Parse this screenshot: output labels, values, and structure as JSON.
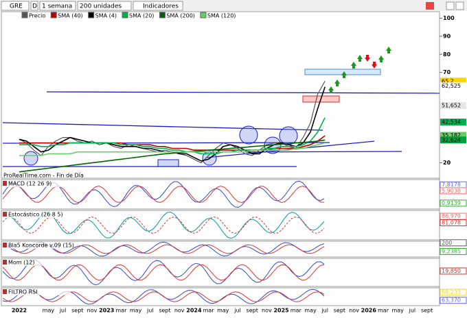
{
  "toolbar": {
    "symbol": "GRE",
    "mode": "D",
    "period": "1 semana",
    "units": "200 unidades",
    "indicators": "Indicadores"
  },
  "chart_data": {
    "type": "line",
    "categories": [
      "2022",
      null,
      null,
      null,
      "may",
      null,
      "jul",
      null,
      "sept",
      null,
      "nov",
      null,
      "2023",
      null,
      "mar",
      null,
      "may",
      null,
      "jul",
      null,
      "sept",
      null,
      "nov",
      null,
      "2024",
      null,
      "mar",
      null,
      "may",
      null,
      "jul",
      null,
      "sept",
      null,
      "nov",
      null,
      "2025",
      null,
      "mar",
      null,
      "may",
      null,
      "jul",
      null,
      "sept",
      null,
      "nov",
      null,
      "2026",
      null,
      "mar",
      null,
      "may",
      null,
      "jul",
      null,
      "sept"
    ],
    "series": [
      {
        "name": "Precio",
        "color": "#555555",
        "values": [
          33,
          31,
          27,
          24,
          29,
          32,
          34,
          34,
          32,
          31,
          32,
          30,
          31,
          29,
          28,
          30,
          29,
          28,
          27,
          26,
          27,
          26,
          25,
          24,
          22,
          20,
          24,
          28,
          31,
          30,
          28,
          25,
          24,
          27,
          30,
          31,
          31,
          29,
          28,
          34,
          42,
          58,
          65.2,
          null,
          null,
          null,
          null,
          null,
          null,
          null,
          null,
          null,
          null,
          null,
          null,
          null,
          null
        ]
      },
      {
        "name": "SMA (40)",
        "color": "#c00000",
        "values": [
          31,
          31,
          31,
          31,
          31,
          31,
          31,
          31,
          31,
          31,
          31,
          31,
          31,
          31,
          31,
          30,
          30,
          30,
          30,
          29,
          29,
          28,
          28,
          28,
          27,
          27,
          27,
          27,
          27,
          27,
          27,
          27,
          27,
          27,
          27,
          28,
          28,
          28,
          28,
          29,
          30,
          32,
          35,
          null,
          null,
          null,
          null,
          null,
          null,
          null,
          null,
          null,
          null,
          null,
          null,
          null,
          null
        ]
      },
      {
        "name": "SMA (4)",
        "color": "#000000",
        "values": [
          33,
          32,
          29,
          26,
          27,
          30,
          32,
          34,
          33,
          32,
          31,
          31,
          31,
          30,
          29,
          29,
          29,
          28,
          28,
          27,
          26,
          26,
          25,
          25,
          23,
          21,
          22,
          25,
          29,
          30,
          29,
          27,
          25,
          25,
          28,
          30,
          31,
          30,
          29,
          31,
          37,
          50,
          62,
          null,
          null,
          null,
          null,
          null,
          null,
          null,
          null,
          null,
          null,
          null,
          null,
          null,
          null
        ]
      },
      {
        "name": "SMA (20)",
        "color": "#00b050",
        "values": [
          30,
          30,
          30,
          29,
          29,
          30,
          30,
          31,
          31,
          31,
          31,
          31,
          31,
          31,
          30,
          30,
          30,
          29,
          29,
          28,
          28,
          27,
          27,
          26,
          26,
          25,
          25,
          25,
          26,
          26,
          27,
          27,
          27,
          27,
          28,
          28,
          29,
          29,
          29,
          30,
          32,
          37,
          45,
          null,
          null,
          null,
          null,
          null,
          null,
          null,
          null,
          null,
          null,
          null,
          null,
          null,
          null
        ]
      },
      {
        "name": "SMA (200)",
        "color": "#006400",
        "values": [
          15,
          15.5,
          16,
          16.5,
          17,
          17.5,
          18,
          18.5,
          19,
          19.5,
          20,
          20.5,
          21,
          21.5,
          22,
          22.5,
          23,
          23.5,
          24,
          24.5,
          25,
          25.3,
          25.6,
          26,
          26.3,
          26.6,
          27,
          27.3,
          27.6,
          28,
          28.3,
          28.6,
          29,
          29.3,
          29.6,
          30,
          30.3,
          30.6,
          31,
          31.3,
          31.6,
          32,
          32.6,
          null,
          null,
          null,
          null,
          null,
          null,
          null,
          null,
          null,
          null,
          null,
          null,
          null,
          null
        ]
      },
      {
        "name": "SMA (120)",
        "color": "#66cc66",
        "values": [
          24,
          24,
          24,
          24,
          25,
          25,
          25,
          25,
          26,
          26,
          26,
          26,
          26,
          26,
          26,
          26,
          26,
          26,
          26,
          26,
          26,
          26,
          26,
          26,
          26,
          26,
          26,
          26,
          26,
          26,
          26,
          26,
          27,
          27,
          27,
          27,
          27,
          27,
          28,
          28,
          29,
          30,
          31,
          null,
          null,
          null,
          null,
          null,
          null,
          null,
          null,
          null,
          null,
          null,
          null,
          null,
          null
        ]
      }
    ],
    "ylim": [
      11.5,
      103.6
    ],
    "yticks": [
      20,
      70,
      80,
      90,
      100
    ],
    "price_tags": [
      {
        "value": 65.2,
        "label": "65,2",
        "color": "#ffd700"
      },
      {
        "value": 62.525,
        "label": "62,525",
        "color": "#ffffff"
      },
      {
        "value": 51.652,
        "label": "51,652",
        "color": "#e6e6e6"
      },
      {
        "value": 42.534,
        "label": "42,534",
        "color": "#00b050"
      },
      {
        "value": 35.182,
        "label": "35,182",
        "color": "#66cc66"
      },
      {
        "value": 32.624,
        "label": "32,624",
        "color": "#00a040"
      }
    ],
    "source": "ProRealTime.com - Fin de Día"
  },
  "panels": [
    {
      "title": "MACD (12 26 9)",
      "tags": [
        "7,8178",
        "5,9038",
        "0,9139"
      ]
    },
    {
      "title": "Estocástico (26 8 5)",
      "tags": [
        "86,979",
        "81,078"
      ]
    },
    {
      "title": "Bla5 Koncorde v.09 (15)",
      "tags": [
        "200",
        "9,2385"
      ]
    },
    {
      "title": "Mom (12)",
      "tags": [
        "19,850"
      ]
    },
    {
      "title": "FILTRO RSI",
      "tags": [
        "68,233",
        "63,370"
      ]
    }
  ]
}
